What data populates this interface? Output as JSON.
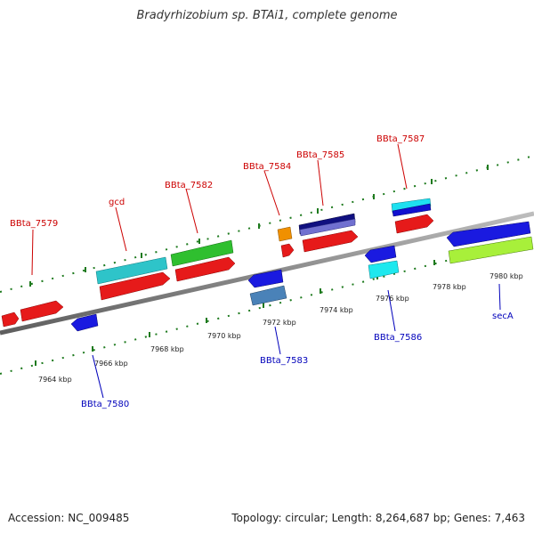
{
  "header": {
    "title": "Bradyrhizobium sp. BTAi1, complete genome"
  },
  "footer": {
    "accession": "Accession: NC_009485",
    "summary": "Topology: circular; Length: 8,264,687 bp; Genes: 7,463"
  },
  "backbone": {
    "ticks": [
      "7964 kbp",
      "7966 kbp",
      "7968 kbp",
      "7970 kbp",
      "7972 kbp",
      "7974 kbp",
      "7976 kbp",
      "7978 kbp",
      "7980 kbp"
    ]
  },
  "colors": {
    "forward_label": "#cc0000",
    "reverse_label": "#0000bb",
    "backbone": "#888888",
    "tick_dots": "#1e7a1e"
  },
  "genes": [
    {
      "label": "BBta_7579",
      "strand": "forward"
    },
    {
      "label": "gcd",
      "strand": "forward"
    },
    {
      "label": "BBta_7582",
      "strand": "forward"
    },
    {
      "label": "BBta_7584",
      "strand": "forward"
    },
    {
      "label": "BBta_7585",
      "strand": "forward"
    },
    {
      "label": "BBta_7587",
      "strand": "forward"
    },
    {
      "label": "BBta_7580",
      "strand": "reverse"
    },
    {
      "label": "BBta_7583",
      "strand": "reverse"
    },
    {
      "label": "BBta_7586",
      "strand": "reverse"
    },
    {
      "label": "secA",
      "strand": "reverse"
    }
  ]
}
